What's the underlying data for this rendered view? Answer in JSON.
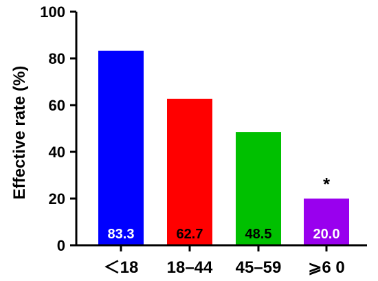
{
  "chart_data": {
    "type": "bar",
    "title": "",
    "xlabel": "",
    "ylabel": "Effective rate (%)",
    "categories": [
      "＜18",
      "18–44",
      "45–59",
      "⩾6 0"
    ],
    "values": [
      83.3,
      62.7,
      48.5,
      20.0
    ],
    "data_labels": [
      "83.3",
      "62.7",
      "48.5",
      "20.0"
    ],
    "bar_colors": [
      "#0000ff",
      "#ff0000",
      "#00c000",
      "#9900ee"
    ],
    "data_label_colors": [
      "#ffffff",
      "#000000",
      "#000000",
      "#ffffff"
    ],
    "yticks": [
      0,
      20,
      40,
      60,
      80,
      100
    ],
    "ylim": [
      0,
      100
    ],
    "grid": false,
    "annotations": [
      {
        "category_index": 3,
        "text": "*"
      }
    ]
  }
}
